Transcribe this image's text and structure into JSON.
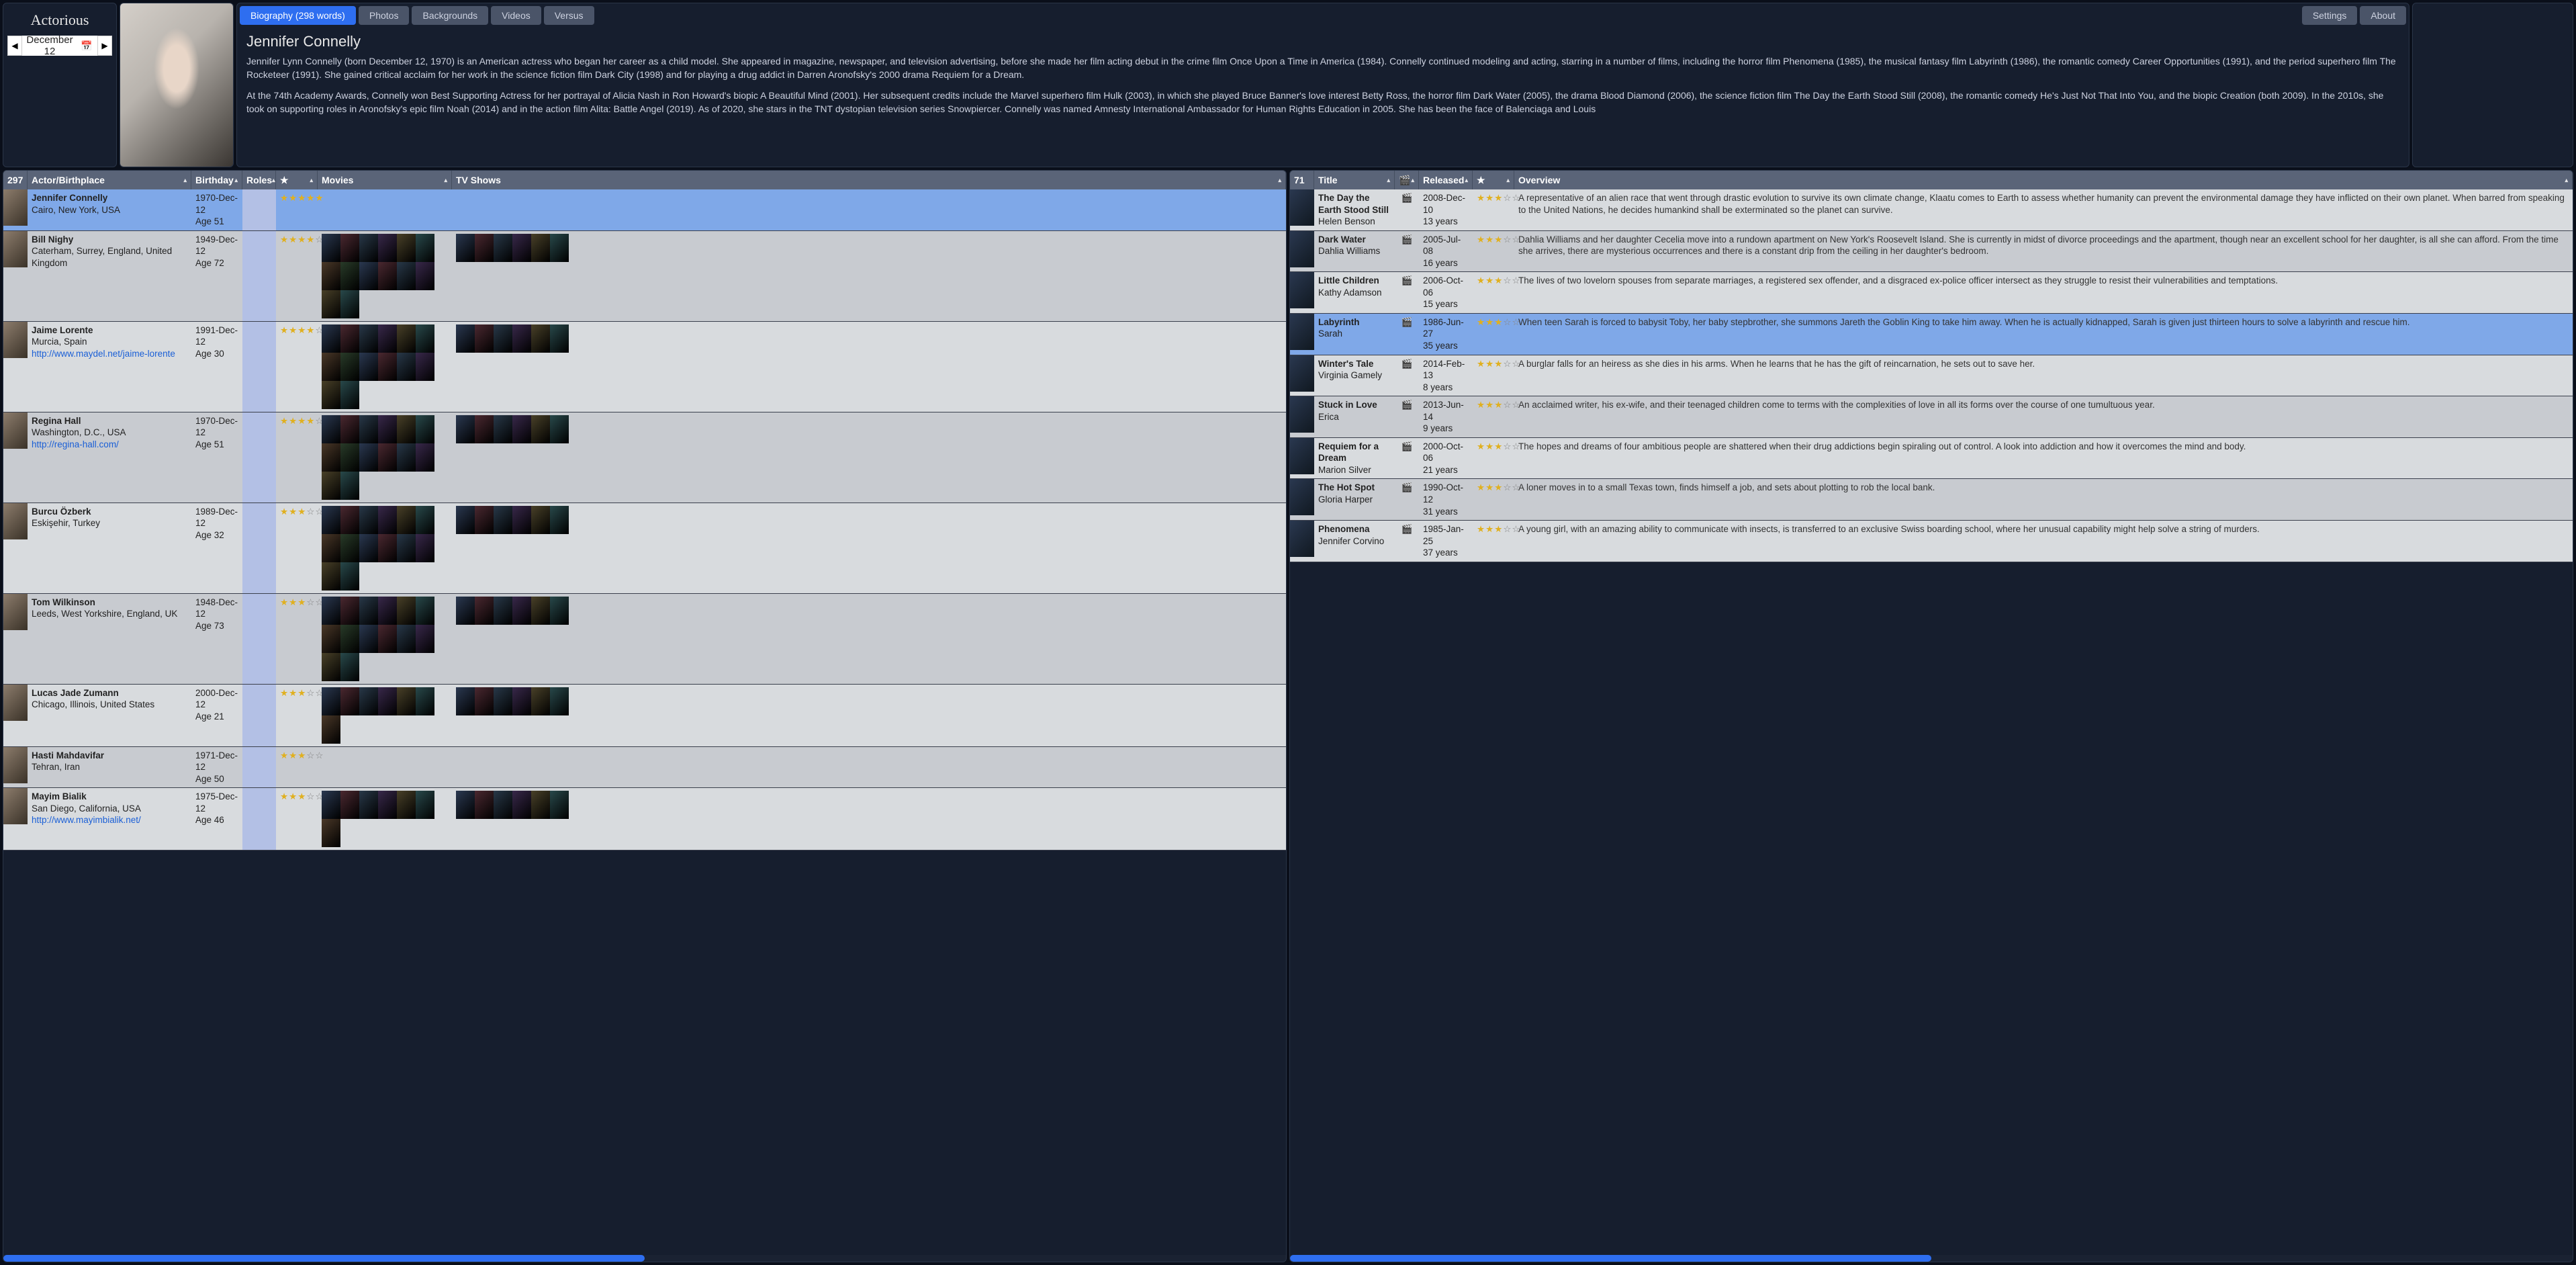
{
  "app": {
    "title": "Actorious",
    "date": "December 12"
  },
  "tabs": {
    "items": [
      "Biography (298 words)",
      "Photos",
      "Backgrounds",
      "Videos",
      "Versus"
    ],
    "right": [
      "Settings",
      "About"
    ],
    "activeIndex": 0
  },
  "bio": {
    "name": "Jennifer Connelly",
    "p1": "Jennifer Lynn Connelly (born December 12, 1970) is an American actress who began her career as a child model. She appeared in magazine, newspaper, and television advertising, before she made her film acting debut in the crime film Once Upon a Time in America (1984). Connelly continued modeling and acting, starring in a number of films, including the horror film Phenomena (1985), the musical fantasy film Labyrinth (1986), the romantic comedy Career Opportunities (1991), and the period superhero film The Rocketeer (1991). She gained critical acclaim for her work in the science fiction film Dark City (1998) and for playing a drug addict in Darren Aronofsky's 2000 drama Requiem for a Dream.",
    "p2": "At the 74th Academy Awards, Connelly won Best Supporting Actress for her portrayal of Alicia Nash in Ron Howard's biopic A Beautiful Mind (2001). Her subsequent credits include the Marvel superhero film Hulk (2003), in which she played Bruce Banner's love interest Betty Ross, the horror film Dark Water (2005), the drama Blood Diamond (2006), the science fiction film The Day the Earth Stood Still (2008), the romantic comedy He's Just Not That Into You, and the biopic Creation (both 2009). In the 2010s, she took on supporting roles in Aronofsky's epic film Noah (2014) and in the action film Alita: Battle Angel (2019). As of 2020, she stars in the TNT dystopian television series Snowpiercer. Connelly was named Amnesty International Ambassador for Human Rights Education in 2005. She has been the face of Balenciaga and Louis"
  },
  "leftGrid": {
    "count": "297",
    "headers": [
      "Actor/Birthplace",
      "Birthday",
      "Roles",
      "★",
      "Movies",
      "TV Shows"
    ],
    "rows": [
      {
        "name": "Jennifer Connelly",
        "place": "Cairo, New York, USA",
        "link": "",
        "birth": "1970-Dec-12",
        "age": "Age 51",
        "stars": 5,
        "selected": true,
        "posters": 0
      },
      {
        "name": "Bill Nighy",
        "place": "Caterham, Surrey, England, United Kingdom",
        "link": "",
        "birth": "1949-Dec-12",
        "age": "Age 72",
        "stars": 4.5,
        "posters": 14
      },
      {
        "name": "Jaime Lorente",
        "place": "Murcia, Spain",
        "link": "http://www.maydel.net/jaime-lorente",
        "birth": "1991-Dec-12",
        "age": "Age 30",
        "stars": 4.5,
        "posters": 14
      },
      {
        "name": "Regina Hall",
        "place": "Washington, D.C., USA",
        "link": "http://regina-hall.com/",
        "birth": "1970-Dec-12",
        "age": "Age 51",
        "stars": 4.5,
        "posters": 14
      },
      {
        "name": "Burcu Özberk",
        "place": "Eskişehir, Turkey",
        "link": "",
        "birth": "1989-Dec-12",
        "age": "Age 32",
        "stars": 3,
        "posters": 14
      },
      {
        "name": "Tom Wilkinson",
        "place": "Leeds, West Yorkshire, England, UK",
        "link": "",
        "birth": "1948-Dec-12",
        "age": "Age 73",
        "stars": 3,
        "posters": 14
      },
      {
        "name": "Lucas Jade Zumann",
        "place": "Chicago, Illinois, United States",
        "link": "",
        "birth": "2000-Dec-12",
        "age": "Age 21",
        "stars": 3.5,
        "posters": 7
      },
      {
        "name": "Hasti Mahdavifar",
        "place": "Tehran, Iran",
        "link": "",
        "birth": "1971-Dec-12",
        "age": "Age 50",
        "stars": 3.5,
        "posters": 0
      },
      {
        "name": "Mayim Bialik",
        "place": "San Diego, California, USA",
        "link": "http://www.mayimbialik.net/",
        "birth": "1975-Dec-12",
        "age": "Age 46",
        "stars": 3.5,
        "posters": 7
      }
    ]
  },
  "rightGrid": {
    "count": "71",
    "headers": [
      "Title",
      "",
      "Released",
      "★",
      "Overview"
    ],
    "rows": [
      {
        "title": "The Day the Earth Stood Still",
        "role": "Helen Benson",
        "released": "2008-Dec-10",
        "age": "13 years",
        "stars": 3,
        "overview": "A representative of an alien race that went through drastic evolution to survive its own climate change, Klaatu comes to Earth to assess whether humanity can prevent the environmental damage they have inflicted on their own planet. When barred from speaking to the United Nations, he decides humankind shall be exterminated so the planet can survive."
      },
      {
        "title": "Dark Water",
        "role": "Dahlia Williams",
        "released": "2005-Jul-08",
        "age": "16 years",
        "stars": 3,
        "overview": "Dahlia Williams and her daughter Cecelia move into a rundown apartment on New York's Roosevelt Island. She is currently in midst of divorce proceedings and the apartment, though near an excellent school for her daughter, is all she can afford. From the time she arrives, there are mysterious occurrences and there is a constant drip from the ceiling in her daughter's bedroom."
      },
      {
        "title": "Little Children",
        "role": "Kathy Adamson",
        "released": "2006-Oct-06",
        "age": "15 years",
        "stars": 3,
        "overview": "The lives of two lovelorn spouses from separate marriages, a registered sex offender, and a disgraced ex-police officer intersect as they struggle to resist their vulnerabilities and temptations."
      },
      {
        "title": "Labyrinth",
        "role": "Sarah",
        "released": "1986-Jun-27",
        "age": "35 years",
        "stars": 3,
        "overview": "When teen Sarah is forced to babysit Toby, her baby stepbrother, she summons Jareth the Goblin King to take him away. When he is actually kidnapped, Sarah is given just thirteen hours to solve a labyrinth and rescue him.",
        "selected": true
      },
      {
        "title": "Winter's Tale",
        "role": "Virginia Gamely",
        "released": "2014-Feb-13",
        "age": "8 years",
        "stars": 3,
        "overview": "A burglar falls for an heiress as she dies in his arms. When he learns that he has the gift of reincarnation, he sets out to save her."
      },
      {
        "title": "Stuck in Love",
        "role": "Erica",
        "released": "2013-Jun-14",
        "age": "9 years",
        "stars": 3,
        "overview": "An acclaimed writer, his ex-wife, and their teenaged children come to terms with the complexities of love in all its forms over the course of one tumultuous year."
      },
      {
        "title": "Requiem for a Dream",
        "role": "Marion Silver",
        "released": "2000-Oct-06",
        "age": "21 years",
        "stars": 3,
        "overview": "The hopes and dreams of four ambitious people are shattered when their drug addictions begin spiraling out of control. A look into addiction and how it overcomes the mind and body."
      },
      {
        "title": "The Hot Spot",
        "role": "Gloria Harper",
        "released": "1990-Oct-12",
        "age": "31 years",
        "stars": 3,
        "overview": "A loner moves in to a small Texas town, finds himself a job, and sets about plotting to rob the local bank."
      },
      {
        "title": "Phenomena",
        "role": "Jennifer Corvino",
        "released": "1985-Jan-25",
        "age": "37 years",
        "stars": 3,
        "overview": "A young girl, with an amazing ability to communicate with insects, is transferred to an exclusive Swiss boarding school, where her unusual capability might help solve a string of murders."
      }
    ]
  },
  "posterColors": [
    "#2a3850",
    "#4a2830",
    "#283848",
    "#38284a",
    "#484028",
    "#28484a",
    "#4a3828",
    "#283a28"
  ]
}
